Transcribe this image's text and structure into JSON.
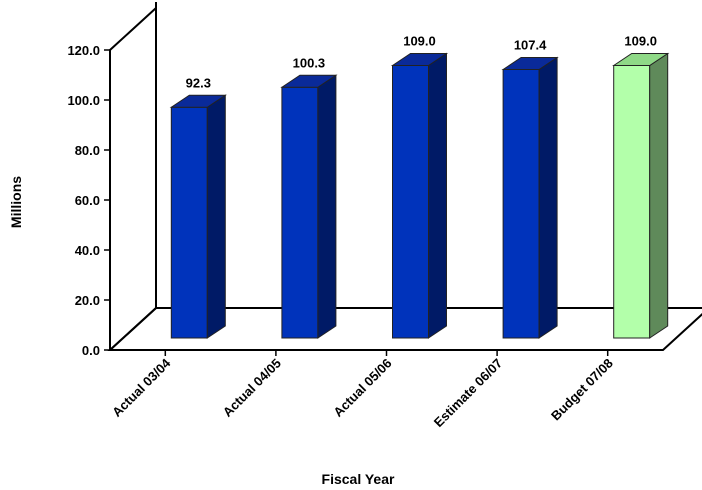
{
  "chart_data": {
    "type": "bar",
    "title": "",
    "xlabel": "Fiscal Year",
    "ylabel": "Millions",
    "ylim": [
      0,
      120
    ],
    "yticks": [
      0,
      20,
      40,
      60,
      80,
      100,
      120
    ],
    "ytick_labels": [
      "0.0",
      "20.0",
      "40.0",
      "60.0",
      "80.0",
      "100.0",
      "120.0"
    ],
    "categories": [
      "Actual 03/04",
      "Actual 04/05",
      "Actual 05/06",
      "Estimate 06/07",
      "Budget 07/08"
    ],
    "values": [
      92.3,
      100.3,
      109.0,
      107.4,
      109.0
    ],
    "value_labels": [
      "92.3",
      "100.3",
      "109.0",
      "107.4",
      "109.0"
    ],
    "grid": false,
    "legend": "none",
    "colors": {
      "actual_front": "#0033bb",
      "actual_side": "#001a66",
      "actual_top": "#0a2a99",
      "budget_front": "#b3ffaa",
      "budget_side": "#5f8a5a",
      "budget_top": "#8fd987"
    }
  }
}
